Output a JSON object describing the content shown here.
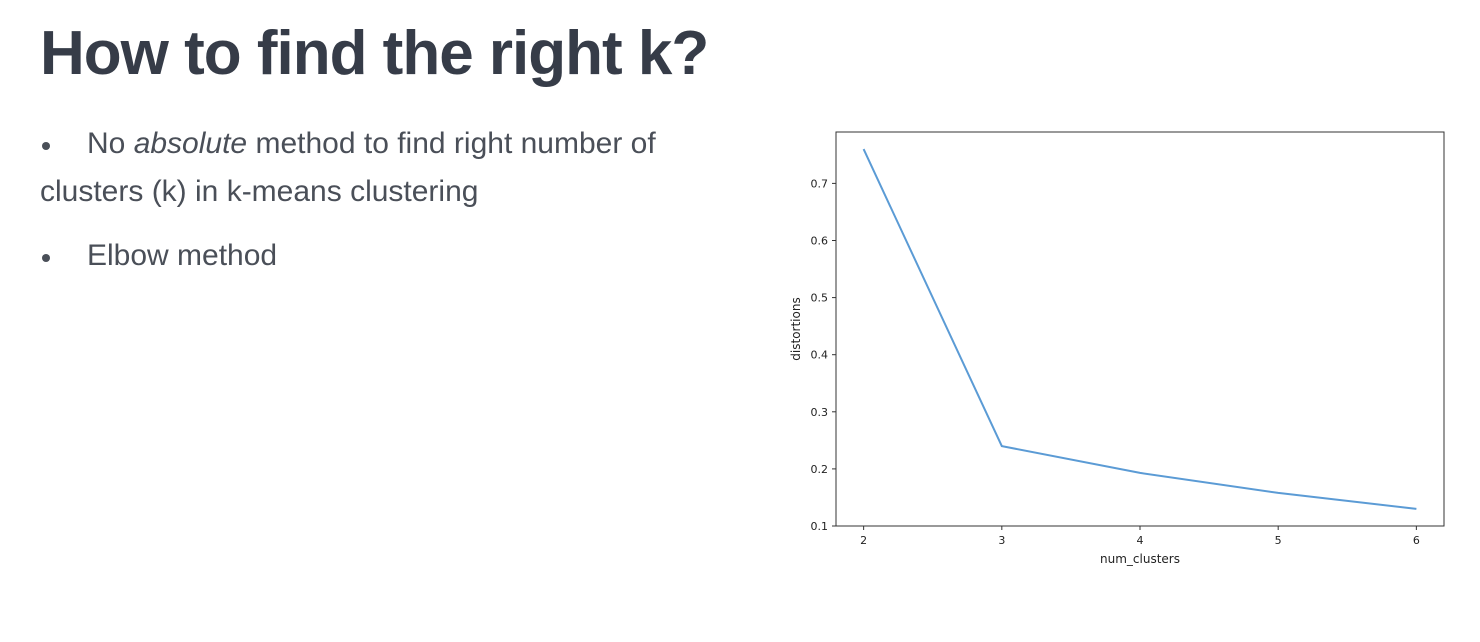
{
  "slide": {
    "title": "How to find the right k?",
    "bullets": [
      {
        "before": "No ",
        "emphasis": "absolute",
        "after": " method to find right number of clusters (k) in k-means clustering"
      },
      {
        "before": "Elbow method",
        "emphasis": "",
        "after": ""
      }
    ]
  },
  "chart_data": {
    "type": "line",
    "title": "",
    "xlabel": "num_clusters",
    "ylabel": "distortions",
    "x": [
      2,
      3,
      4,
      5,
      6
    ],
    "series": [
      {
        "values": [
          0.76,
          0.24,
          0.193,
          0.158,
          0.13
        ],
        "color": "#5b9bd5"
      }
    ],
    "xlim": [
      1.8,
      6.2
    ],
    "ylim": [
      0.1,
      0.79
    ],
    "xticks": [
      2,
      3,
      4,
      5,
      6
    ],
    "yticks": [
      0.1,
      0.2,
      0.3,
      0.4,
      0.5,
      0.6,
      0.7
    ],
    "grid": false,
    "legend": "none"
  }
}
